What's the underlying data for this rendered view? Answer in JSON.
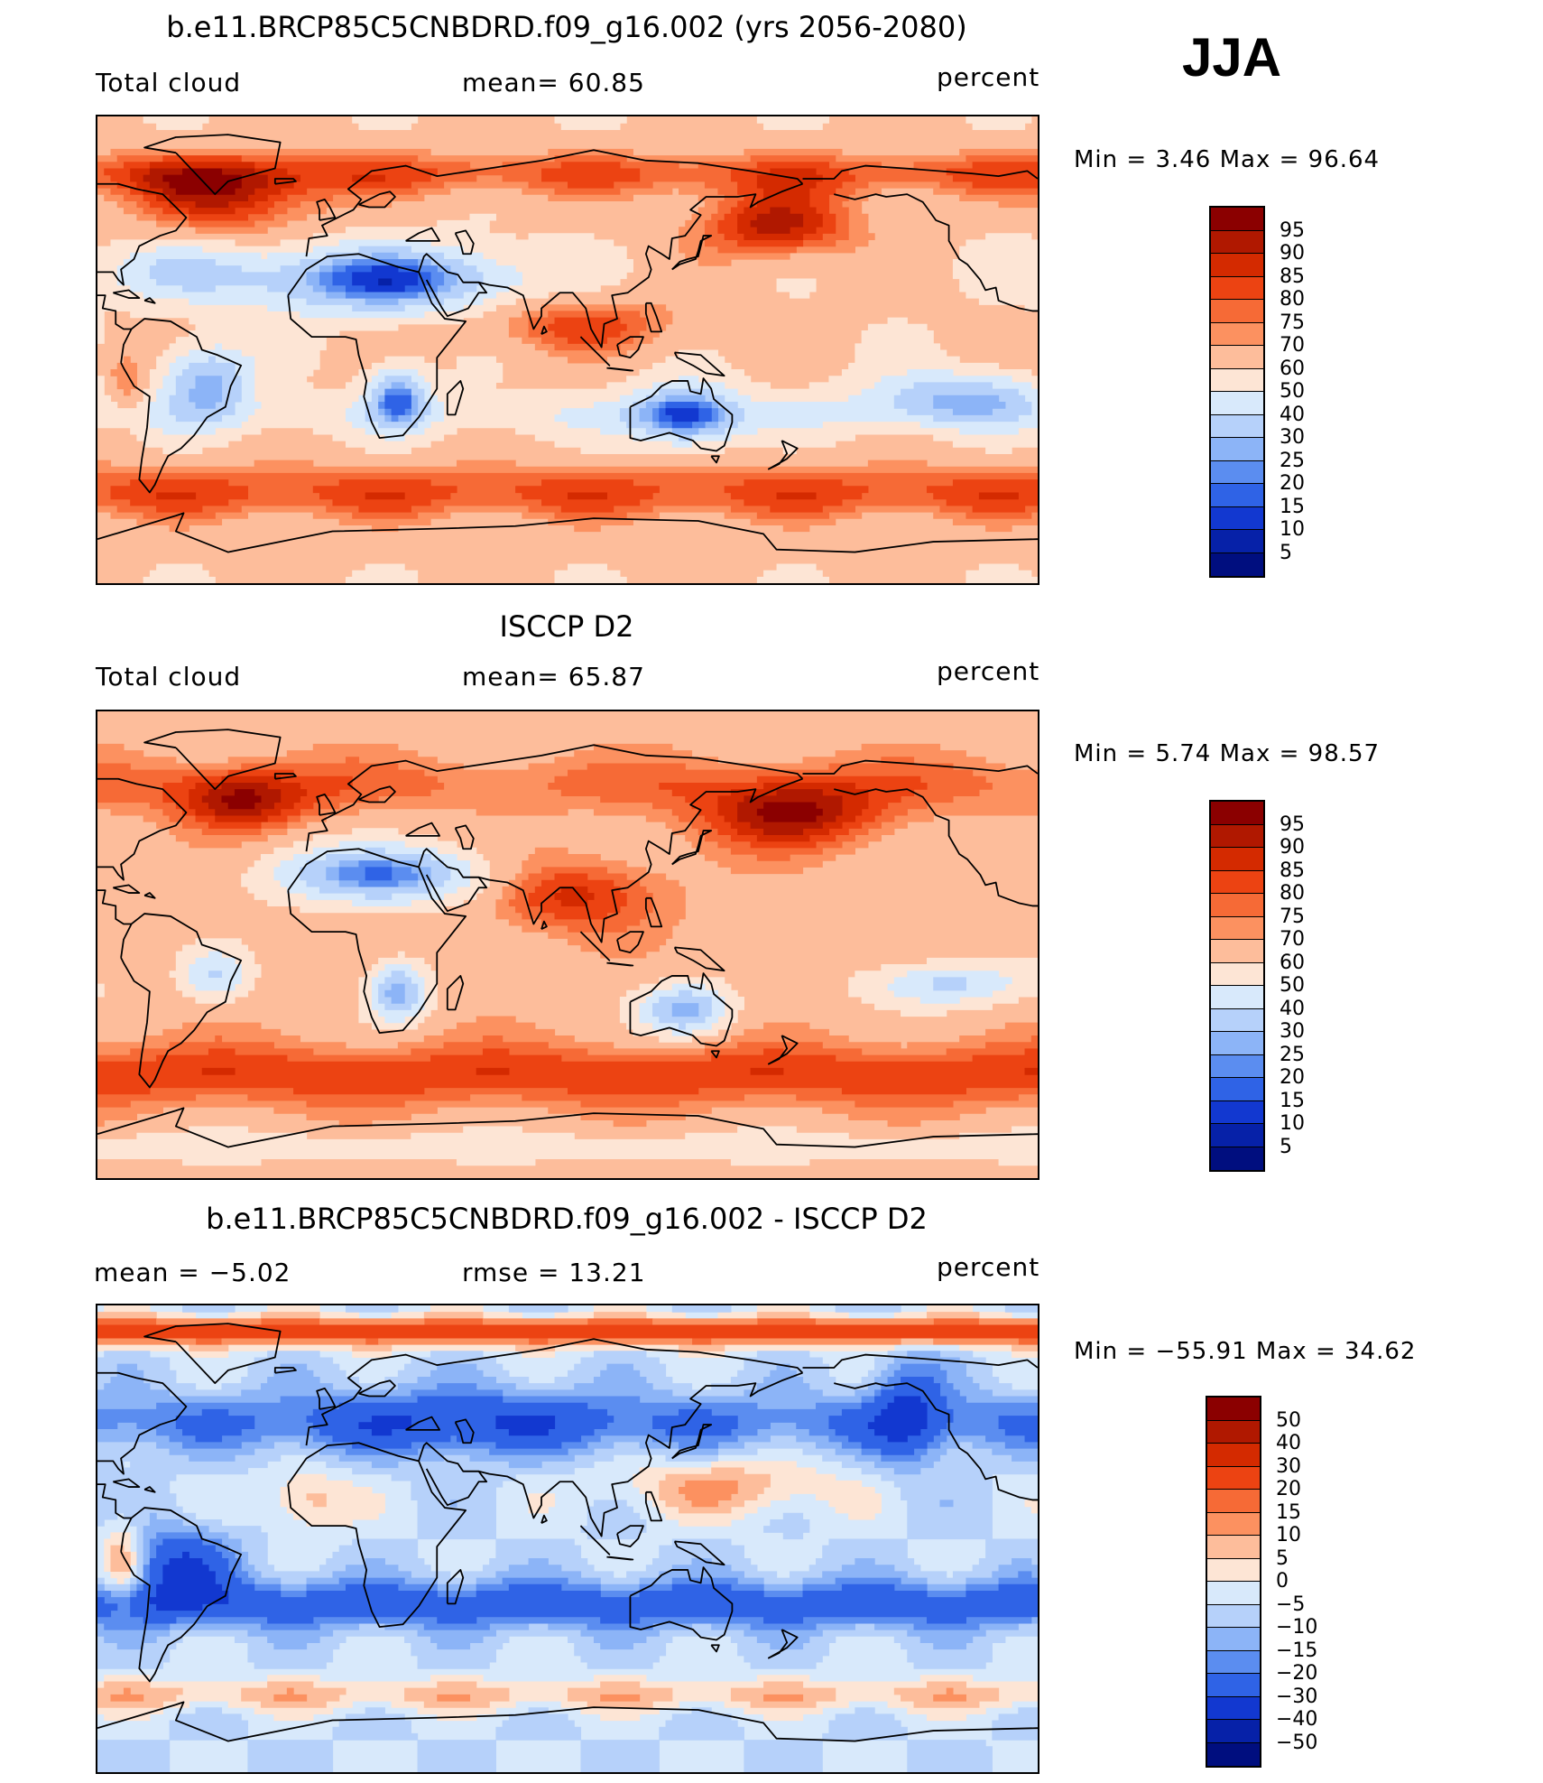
{
  "season": "JJA",
  "panels": [
    {
      "title": "b.e11.BRCP85C5CNBDRD.f09_g16.002 (yrs 2056-2080)",
      "left_text": "Total cloud",
      "center_text": "mean=   60.85",
      "right_text": "percent",
      "minmax": "Min =    3.46  Max =   96.64",
      "colorbar_labels": [
        "95",
        "90",
        "85",
        "80",
        "75",
        "70",
        "60",
        "50",
        "40",
        "30",
        "25",
        "20",
        "15",
        "10",
        "5"
      ],
      "colorbar_colors": [
        "#8b0000",
        "#b01800",
        "#d42a00",
        "#ec4312",
        "#f66a36",
        "#fc9160",
        "#fdbd9b",
        "#fde5d5",
        "#d8e9fb",
        "#b6d1fa",
        "#8cb4f7",
        "#5b8df0",
        "#2f63e6",
        "#1238d0",
        "#0621a8",
        "#000e7f"
      ],
      "field": "model"
    },
    {
      "title": "ISCCP D2",
      "left_text": "Total cloud",
      "center_text": "mean=   65.87",
      "right_text": "percent",
      "minmax": "Min =    5.74  Max =   98.57",
      "colorbar_labels": [
        "95",
        "90",
        "85",
        "80",
        "75",
        "70",
        "60",
        "50",
        "40",
        "30",
        "25",
        "20",
        "15",
        "10",
        "5"
      ],
      "colorbar_colors": [
        "#8b0000",
        "#b01800",
        "#d42a00",
        "#ec4312",
        "#f66a36",
        "#fc9160",
        "#fdbd9b",
        "#fde5d5",
        "#d8e9fb",
        "#b6d1fa",
        "#8cb4f7",
        "#5b8df0",
        "#2f63e6",
        "#1238d0",
        "#0621a8",
        "#000e7f"
      ],
      "field": "obs"
    },
    {
      "title": "b.e11.BRCP85C5CNBDRD.f09_g16.002 - ISCCP D2",
      "left_text": "mean =   −5.02",
      "center_text": "rmse =   13.21",
      "right_text": "percent",
      "minmax": "Min = −55.91  Max =   34.62",
      "colorbar_labels": [
        "50",
        "40",
        "30",
        "20",
        "15",
        "10",
        "5",
        "0",
        "−5",
        "−10",
        "−15",
        "−20",
        "−30",
        "−40",
        "−50"
      ],
      "colorbar_colors": [
        "#8b0000",
        "#b01800",
        "#d42a00",
        "#ec4312",
        "#f66a36",
        "#fc9160",
        "#fdbd9b",
        "#fde5d5",
        "#d8e9fb",
        "#b6d1fa",
        "#8cb4f7",
        "#5b8df0",
        "#2f63e6",
        "#1238d0",
        "#0621a8",
        "#000e7f"
      ],
      "field": "diff"
    }
  ]
}
